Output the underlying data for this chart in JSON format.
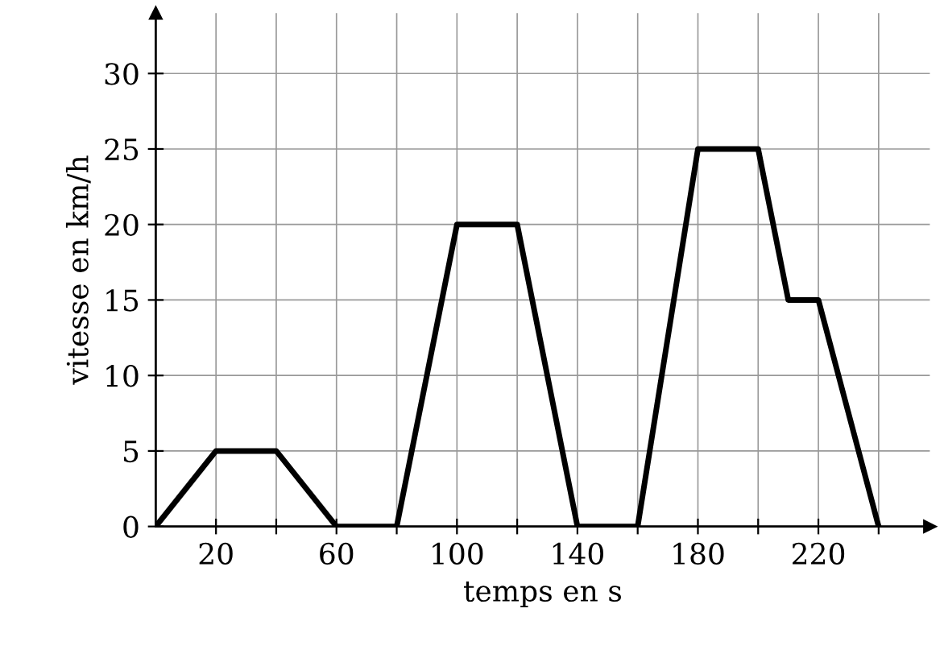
{
  "chart_data": {
    "type": "line",
    "xlabel": "temps en s",
    "ylabel": "vitesse en km/h",
    "x": [
      0,
      20,
      40,
      60,
      80,
      100,
      120,
      140,
      160,
      180,
      200,
      210,
      220,
      240
    ],
    "series": [
      {
        "color": "#000000",
        "values": [
          0,
          5,
          5,
          0,
          0,
          20,
          20,
          0,
          0,
          25,
          25,
          15,
          15,
          0
        ]
      }
    ],
    "xlim": [
      0,
      257
    ],
    "ylim": [
      0,
      34
    ],
    "xticks": [
      {
        "value": 20,
        "label": "20"
      },
      {
        "value": 40,
        "label": null
      },
      {
        "value": 60,
        "label": "60"
      },
      {
        "value": 80,
        "label": null
      },
      {
        "value": 100,
        "label": "100"
      },
      {
        "value": 120,
        "label": null
      },
      {
        "value": 140,
        "label": "140"
      },
      {
        "value": 160,
        "label": null
      },
      {
        "value": 180,
        "label": "180"
      },
      {
        "value": 200,
        "label": null
      },
      {
        "value": 220,
        "label": "220"
      },
      {
        "value": 240,
        "label": null
      }
    ],
    "yticks": [
      0,
      5,
      10,
      15,
      20,
      25,
      30
    ],
    "grid": true,
    "marker": "none",
    "line_style": "solid"
  }
}
